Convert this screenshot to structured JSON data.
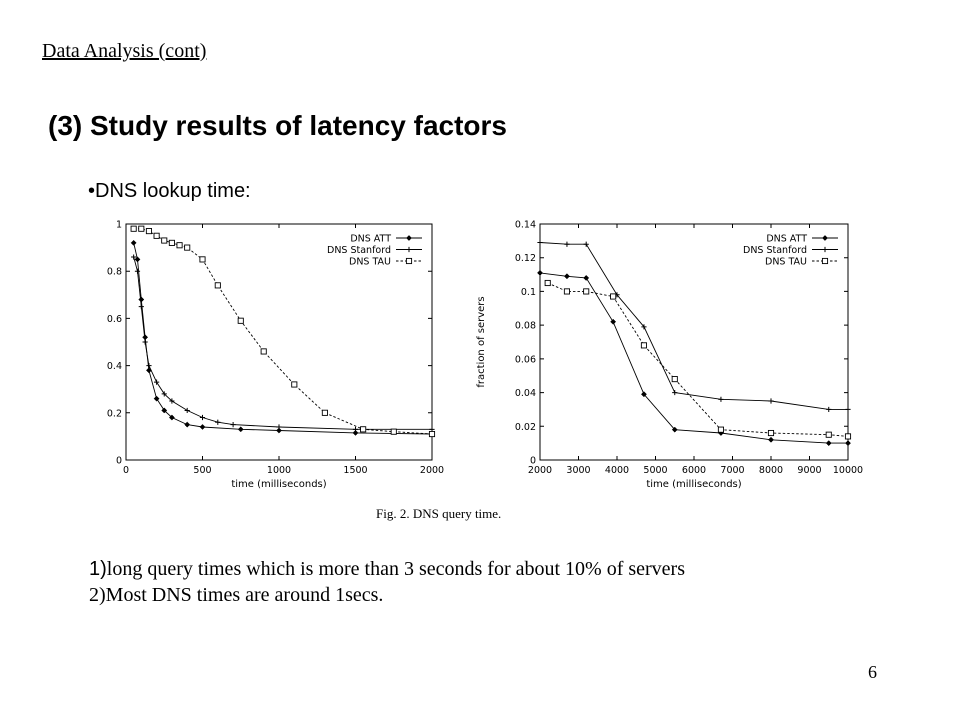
{
  "slide": {
    "heading": "Data Analysis (cont)",
    "title": "(3) Study results of latency factors",
    "bullet": "•DNS lookup time:",
    "caption": "Fig. 2.  DNS query time.",
    "findings": [
      {
        "num": "1)",
        "text": "long query times which is more than 3 seconds for about 10% of servers"
      },
      {
        "num": "",
        "text": "2)Most DNS times are around 1secs."
      }
    ],
    "page_number": "6"
  },
  "chart_data": [
    {
      "type": "line",
      "xlabel": "time (milliseconds)",
      "ylabel": "",
      "xlim": [
        0,
        2000
      ],
      "ylim": [
        0,
        1
      ],
      "xticks": [
        "0",
        "500",
        "1000",
        "1500",
        "2000"
      ],
      "yticks": [
        "0",
        "0.2",
        "0.4",
        "0.6",
        "0.8",
        "1"
      ],
      "legend_position": "top-right",
      "grid": false,
      "series": [
        {
          "name": "DNS ATT",
          "marker": "diamond",
          "dash": "solid",
          "x": [
            50,
            75,
            100,
            125,
            150,
            200,
            250,
            300,
            400,
            500,
            750,
            1000,
            1500,
            2000
          ],
          "y": [
            0.92,
            0.85,
            0.68,
            0.52,
            0.38,
            0.26,
            0.21,
            0.18,
            0.15,
            0.14,
            0.13,
            0.125,
            0.115,
            0.11
          ]
        },
        {
          "name": "DNS Stanford",
          "marker": "plus",
          "dash": "solid",
          "x": [
            50,
            75,
            100,
            125,
            150,
            200,
            250,
            300,
            400,
            500,
            600,
            700,
            1000,
            1500,
            2000
          ],
          "y": [
            0.86,
            0.8,
            0.65,
            0.5,
            0.4,
            0.33,
            0.28,
            0.25,
            0.21,
            0.18,
            0.16,
            0.15,
            0.14,
            0.13,
            0.13
          ]
        },
        {
          "name": "DNS TAU",
          "marker": "square",
          "dash": "dashed",
          "x": [
            50,
            100,
            150,
            200,
            250,
            300,
            350,
            400,
            500,
            600,
            750,
            900,
            1100,
            1300,
            1550,
            1750,
            2000
          ],
          "y": [
            0.98,
            0.98,
            0.97,
            0.95,
            0.93,
            0.92,
            0.91,
            0.9,
            0.85,
            0.74,
            0.59,
            0.46,
            0.32,
            0.2,
            0.13,
            0.12,
            0.11
          ]
        }
      ]
    },
    {
      "type": "line",
      "xlabel": "time (milliseconds)",
      "ylabel": "fraction of servers",
      "xlim": [
        2000,
        10000
      ],
      "ylim": [
        0,
        0.14
      ],
      "xticks": [
        "2000",
        "3000",
        "4000",
        "5000",
        "6000",
        "7000",
        "8000",
        "9000",
        "10000"
      ],
      "yticks": [
        "0",
        "0.02",
        "0.04",
        "0.06",
        "0.08",
        "0.1",
        "0.12",
        "0.14"
      ],
      "legend_position": "top-right",
      "grid": false,
      "series": [
        {
          "name": "DNS ATT",
          "marker": "diamond",
          "dash": "solid",
          "x": [
            2000,
            2700,
            3200,
            3900,
            4700,
            5500,
            6700,
            8000,
            9500,
            10000
          ],
          "y": [
            0.111,
            0.109,
            0.108,
            0.082,
            0.039,
            0.018,
            0.016,
            0.012,
            0.01,
            0.01
          ]
        },
        {
          "name": "DNS Stanford",
          "marker": "plus",
          "dash": "solid",
          "x": [
            2000,
            2700,
            3200,
            4000,
            4700,
            5500,
            6700,
            8000,
            9500,
            10000
          ],
          "y": [
            0.129,
            0.128,
            0.128,
            0.098,
            0.079,
            0.04,
            0.036,
            0.035,
            0.03,
            0.03
          ]
        },
        {
          "name": "DNS TAU",
          "marker": "square",
          "dash": "dashed",
          "x": [
            2200,
            2700,
            3200,
            3900,
            4700,
            5500,
            6700,
            8000,
            9500,
            10000
          ],
          "y": [
            0.105,
            0.1,
            0.1,
            0.097,
            0.068,
            0.048,
            0.018,
            0.016,
            0.015,
            0.014
          ]
        }
      ]
    }
  ]
}
